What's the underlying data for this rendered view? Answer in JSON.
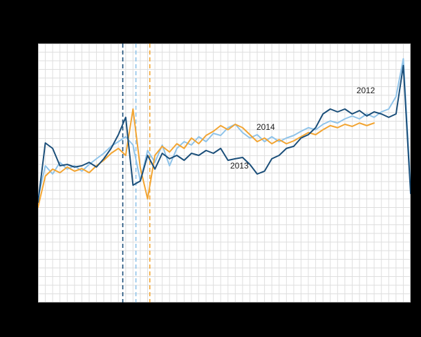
{
  "chart": {
    "background": "#000000",
    "plot_background": "#ffffff",
    "grid_color": "#dedede",
    "plot_border_color": "#c4c4c4",
    "label_color": "#1a1a1a"
  },
  "chart_data": {
    "type": "line",
    "x_unit": "week",
    "xlim": [
      1,
      52
    ],
    "ylim": [
      0,
      100
    ],
    "grid": "on",
    "legend_position": "none",
    "x": [
      1,
      2,
      3,
      4,
      5,
      6,
      7,
      8,
      9,
      10,
      11,
      12,
      13,
      14,
      15,
      16,
      17,
      18,
      19,
      20,
      21,
      22,
      23,
      24,
      25,
      26,
      27,
      28,
      29,
      30,
      31,
      32,
      33,
      34,
      35,
      36,
      37,
      38,
      39,
      40,
      41,
      42,
      43,
      44,
      45,
      46,
      47,
      48,
      49,
      50,
      51,
      52
    ],
    "series": [
      {
        "name": "2012",
        "color": "#8fc3e9",
        "values": [
          40.3,
          52.8,
          49.6,
          54.1,
          51.5,
          52.8,
          50.7,
          53.3,
          55.5,
          57.6,
          60.3,
          62.1,
          64.0,
          60.8,
          46.9,
          58.7,
          54.1,
          60.8,
          52.8,
          59.5,
          62.1,
          60.8,
          64.0,
          62.1,
          65.3,
          64.5,
          67.5,
          68.8,
          65.6,
          63.5,
          64.8,
          62.1,
          64.0,
          62.1,
          63.5,
          64.5,
          66.1,
          67.5,
          66.7,
          68.8,
          70.1,
          69.3,
          70.9,
          72.0,
          70.9,
          72.8,
          71.5,
          73.6,
          74.7,
          79.5,
          94.1,
          44.3
        ]
      },
      {
        "name": "2014",
        "color": "#f2a431",
        "values": [
          36.8,
          48.8,
          51.5,
          50.1,
          52.3,
          50.7,
          51.7,
          50.1,
          52.8,
          54.9,
          57.6,
          59.5,
          56.8,
          74.7,
          52.0,
          40.0,
          56.8,
          60.3,
          58.1,
          61.3,
          59.5,
          63.5,
          61.3,
          64.5,
          66.1,
          68.3,
          66.7,
          68.8,
          67.5,
          64.8,
          62.1,
          63.5,
          61.3,
          62.9,
          61.3,
          62.4,
          64.0,
          65.6,
          64.8,
          66.7,
          68.3,
          67.5,
          68.8,
          68.0,
          69.3,
          68.3,
          69.3
        ]
      },
      {
        "name": "2013",
        "color": "#1a4e79",
        "values": [
          38.7,
          61.6,
          59.5,
          52.8,
          53.3,
          52.3,
          52.8,
          54.1,
          52.3,
          55.5,
          59.5,
          64.8,
          71.5,
          45.3,
          46.9,
          56.8,
          51.5,
          57.6,
          55.5,
          56.8,
          54.9,
          57.6,
          56.8,
          58.7,
          57.6,
          59.5,
          54.9,
          55.5,
          56.0,
          53.3,
          49.6,
          50.7,
          55.5,
          56.8,
          59.5,
          60.3,
          63.5,
          64.8,
          67.5,
          72.8,
          74.7,
          73.6,
          74.7,
          72.8,
          74.1,
          72.0,
          73.6,
          72.8,
          71.5,
          72.8,
          91.5,
          42.1
        ]
      }
    ],
    "easter_markers": [
      {
        "series": "2013",
        "week": 12.6,
        "color": "#1a4e79"
      },
      {
        "series": "2012",
        "week": 14.4,
        "color": "#8fc3e9"
      },
      {
        "series": "2014",
        "week": 16.3,
        "color": "#f2a431"
      }
    ],
    "annotations": [
      {
        "text": "2012",
        "week": 44.6,
        "value": 82.0
      },
      {
        "text": "2014",
        "week": 30.9,
        "value": 67.8
      },
      {
        "text": "2013",
        "week": 27.3,
        "value": 52.8
      }
    ]
  }
}
